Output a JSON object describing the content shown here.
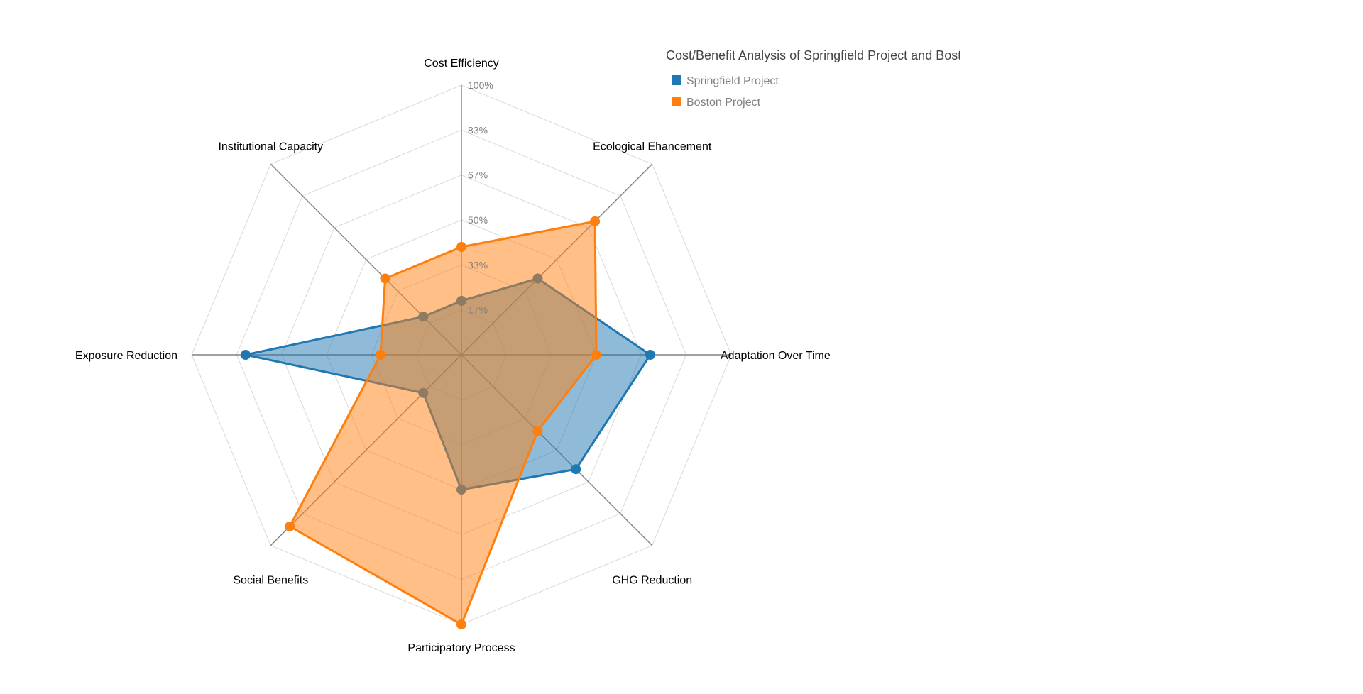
{
  "chart_data": {
    "type": "radar",
    "title": "Cost/Benefit Analysis of Springfield Project and Boston Project",
    "title_visible": "Cost/Benefit Analysis of Springfield Project and Bosto",
    "axes": [
      "Cost Efficiency",
      "Ecological Ehancement",
      "Adaptation Over Time",
      "GHG Reduction",
      "Participatory Process",
      "Social Benefits",
      "Exposure Reduction",
      "Institutional Capacity"
    ],
    "tick_labels": [
      "17%",
      "33%",
      "50%",
      "67%",
      "83%",
      "100%"
    ],
    "range": [
      0,
      100
    ],
    "grid": true,
    "legend_position": "top-right",
    "series": [
      {
        "name": "Springfield Project",
        "color": "#1f77b4",
        "values": [
          20,
          40,
          70,
          60,
          50,
          20,
          80,
          20
        ]
      },
      {
        "name": "Boston Project",
        "color": "#ff7f0e",
        "values": [
          40,
          70,
          50,
          40,
          100,
          90,
          30,
          40
        ]
      }
    ]
  }
}
